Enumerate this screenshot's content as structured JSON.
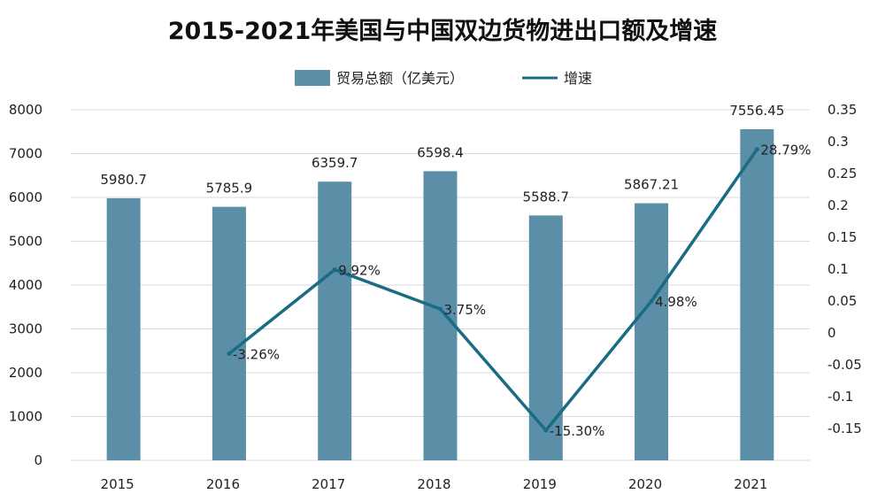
{
  "chart_data": {
    "type": "bar+line",
    "title": "2015-2021年美国与中国双边货物进出口额及增速",
    "categories": [
      "2015",
      "2016",
      "2017",
      "2018",
      "2019",
      "2020",
      "2021"
    ],
    "series": [
      {
        "name": "贸易总额（亿美元）",
        "type": "bar",
        "axis": "left",
        "values": [
          5980.7,
          5785.9,
          6359.7,
          6598.4,
          5588.7,
          5867.21,
          7556.45
        ],
        "labels": [
          "5980.7",
          "5785.9",
          "6359.7",
          "6598.4",
          "5588.7",
          "5867.21",
          "7556.45"
        ],
        "color": "#5b8fa8"
      },
      {
        "name": "增速",
        "type": "line",
        "axis": "right",
        "values": [
          null,
          -0.0326,
          0.0992,
          0.0375,
          -0.153,
          0.0498,
          0.2879
        ],
        "labels": [
          "",
          "-3.26%",
          "9.92%",
          "3.75%",
          "-15.30%",
          "4.98%",
          "28.79%"
        ],
        "color": "#1a6b84"
      }
    ],
    "y_left": {
      "ylim": [
        0,
        8000
      ],
      "ticks": [
        "0",
        "1000",
        "2000",
        "3000",
        "4000",
        "5000",
        "6000",
        "7000",
        "8000"
      ]
    },
    "y_right": {
      "ylim": [
        -0.2,
        0.35
      ],
      "ticks": [
        "-0.15",
        "-0.1",
        "-0.05",
        "0",
        "0.05",
        "0.1",
        "0.15",
        "0.2",
        "0.25",
        "0.3",
        "0.35"
      ],
      "tick_values": [
        -0.15,
        -0.1,
        -0.05,
        0,
        0.05,
        0.1,
        0.15,
        0.2,
        0.25,
        0.3,
        0.35
      ]
    },
    "legend_position": "top-center",
    "grid": true
  }
}
